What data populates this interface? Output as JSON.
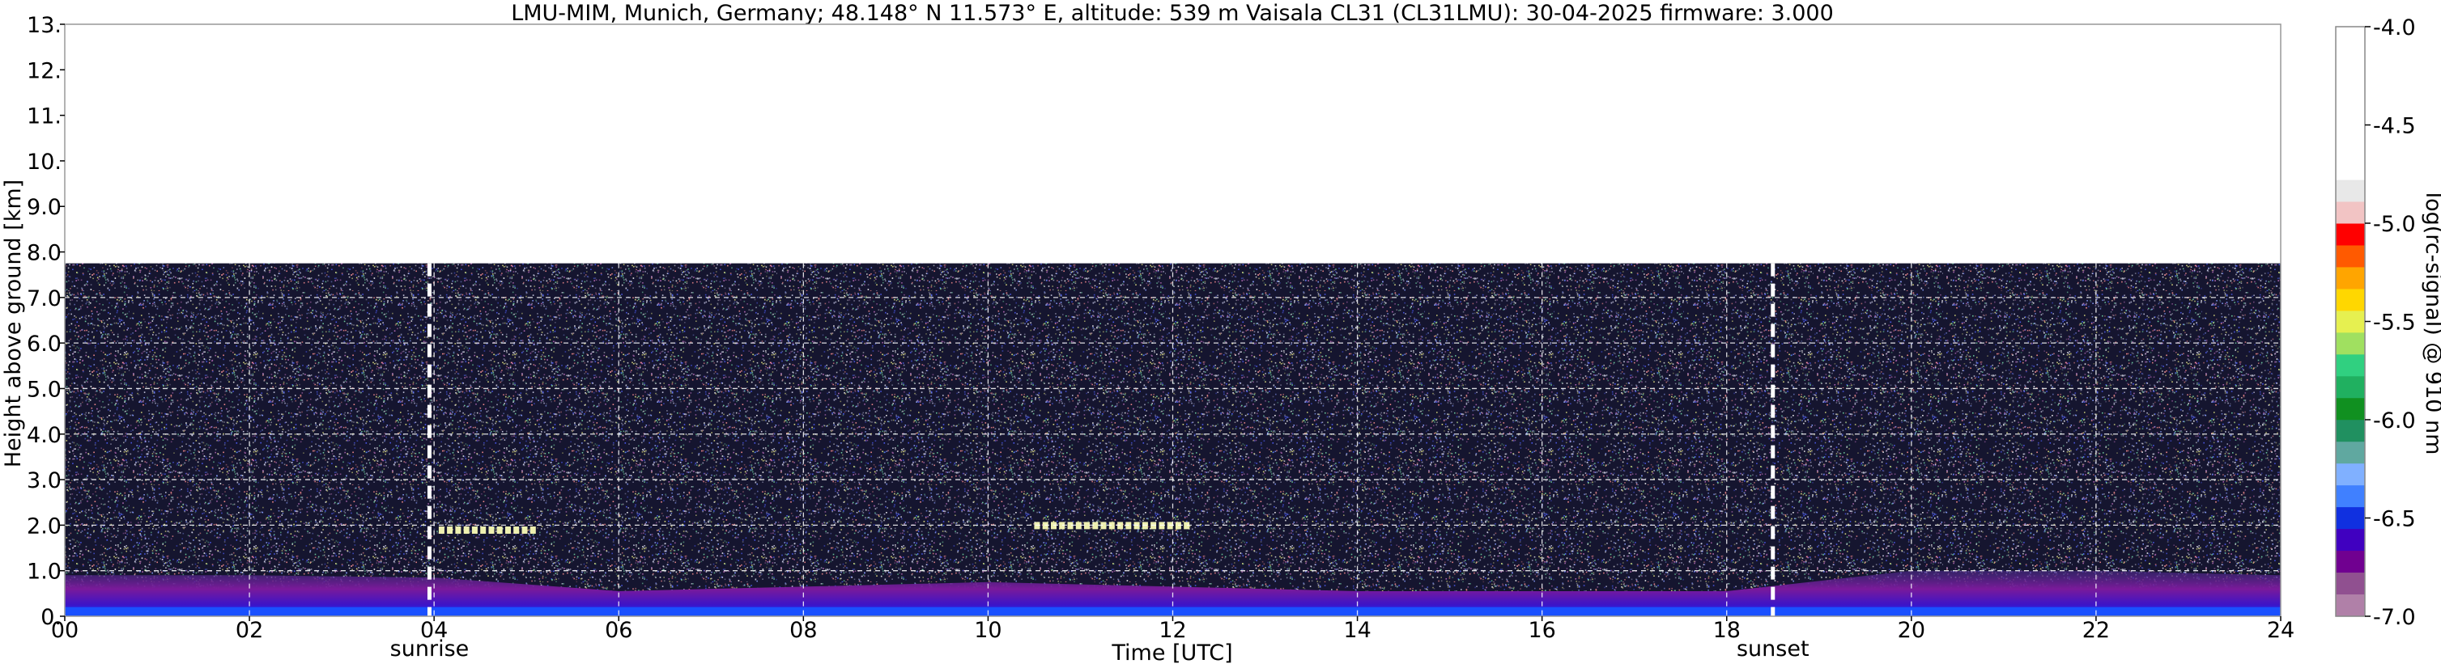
{
  "chart_data": {
    "type": "heatmap",
    "title": "LMU-MIM, Munich, Germany; 48.148° N 11.573° E, altitude: 539 m    Vaisala CL31 (CL31LMU): 30-04-2025    firmware: 3.000",
    "xlabel": "Time [UTC]",
    "ylabel": "Height above ground [km]",
    "xlim": [
      0,
      24
    ],
    "ylim": [
      0,
      13
    ],
    "x_ticks": [
      "00",
      "02",
      "04",
      "06",
      "08",
      "10",
      "12",
      "14",
      "16",
      "18",
      "20",
      "22",
      "24"
    ],
    "y_ticks": [
      "0.",
      "1.0",
      "2.0",
      "3.0",
      "4.0",
      "5.0",
      "6.0",
      "7.0",
      "8.0",
      "9.0",
      "10.",
      "11.",
      "12.",
      "13."
    ],
    "grid": true,
    "colorbar": {
      "label": "log(rc-signal) @ 910 nm",
      "range": [
        -7.0,
        -4.0
      ],
      "ticks": [
        "-4.0",
        "-4.5",
        "-5.0",
        "-5.5",
        "-6.0",
        "-6.5",
        "-7.0"
      ]
    },
    "data_top_km": 7.75,
    "events": [
      {
        "label": "sunrise",
        "time": 3.95
      },
      {
        "label": "sunset",
        "time": 18.5
      }
    ],
    "aerosol_layer": {
      "time": [
        0,
        2,
        4,
        6,
        8,
        10,
        12,
        14,
        16,
        18,
        20,
        22,
        24
      ],
      "top_km": [
        0.9,
        0.9,
        0.85,
        0.55,
        0.65,
        0.75,
        0.65,
        0.55,
        0.55,
        0.55,
        1.0,
        1.0,
        0.9
      ]
    },
    "cloud_segments": [
      {
        "start": 4.05,
        "end": 5.05,
        "height_km": 1.9
      },
      {
        "start": 10.5,
        "end": 12.2,
        "height_km": 2.0
      }
    ]
  },
  "colors": {
    "colormap": [
      "#ffffff",
      "#e8e8e8",
      "#f2c4c4",
      "#ff0000",
      "#ff5a00",
      "#ffa500",
      "#ffd700",
      "#e6f050",
      "#a0e060",
      "#30d080",
      "#20b060",
      "#109020",
      "#209060",
      "#60a8a0",
      "#80b0ff",
      "#4080ff",
      "#1030e0",
      "#4000c0",
      "#700090",
      "#905090",
      "#b080a8"
    ],
    "background_top": "#ffffff",
    "grid": "#ffffff",
    "event_line": "#ffffff"
  }
}
